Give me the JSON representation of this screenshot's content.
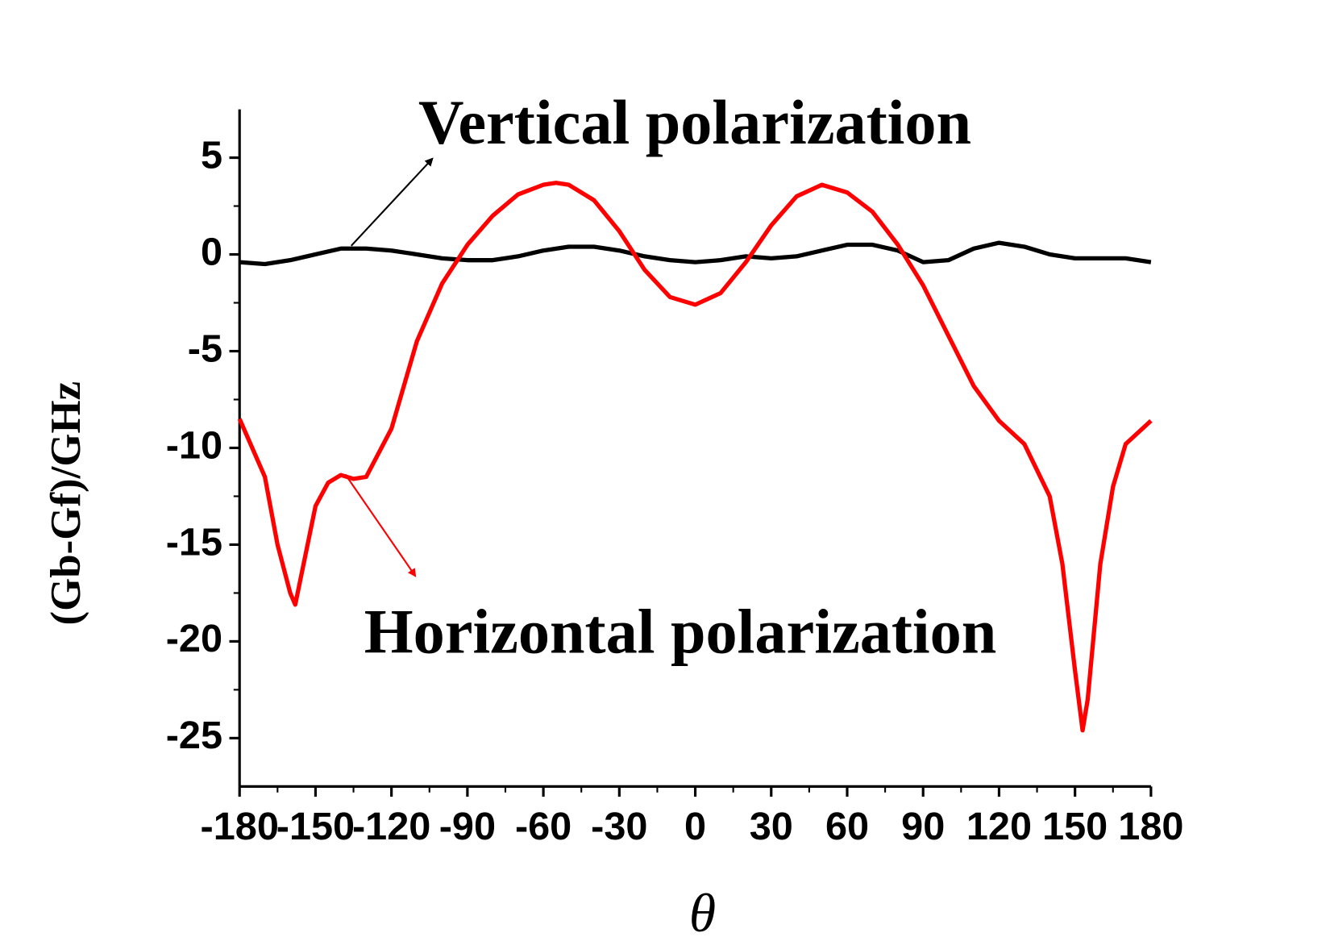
{
  "chart_data": {
    "type": "line",
    "x_label": "θ",
    "y_label": "(Gb-Gf)/GHz",
    "annotations": [
      "Vertical polarization",
      "Horizontal polarization"
    ],
    "xlim": [
      -180,
      180
    ],
    "xticks": [
      -180,
      -150,
      -120,
      -90,
      -60,
      -30,
      0,
      30,
      60,
      90,
      120,
      150,
      180
    ],
    "ylim": [
      -27.5,
      7.5
    ],
    "yticks": [
      -25,
      -20,
      -15,
      -10,
      -5,
      0,
      5
    ],
    "grid": false,
    "series": [
      {
        "name": "Vertical polarization",
        "color": "#000000",
        "x": [
          -180,
          -170,
          -160,
          -150,
          -140,
          -130,
          -120,
          -110,
          -100,
          -90,
          -80,
          -70,
          -60,
          -50,
          -40,
          -30,
          -20,
          -10,
          0,
          10,
          20,
          30,
          40,
          50,
          60,
          70,
          80,
          90,
          100,
          110,
          120,
          130,
          140,
          150,
          160,
          170,
          180
        ],
        "values": [
          -0.4,
          -0.5,
          -0.3,
          0,
          0.3,
          0.3,
          0.2,
          0,
          -0.2,
          -0.3,
          -0.3,
          -0.1,
          0.2,
          0.4,
          0.4,
          0.2,
          -0.1,
          -0.3,
          -0.4,
          -0.3,
          -0.1,
          -0.2,
          -0.1,
          0.2,
          0.5,
          0.5,
          0.2,
          -0.4,
          -0.3,
          0.3,
          0.6,
          0.4,
          0,
          -0.2,
          -0.2,
          -0.2,
          -0.4
        ]
      },
      {
        "name": "Horizontal polarization",
        "color": "#ff0000",
        "x": [
          -180,
          -170,
          -165,
          -160,
          -158,
          -150,
          -145,
          -140,
          -135,
          -130,
          -120,
          -110,
          -100,
          -90,
          -80,
          -70,
          -60,
          -55,
          -50,
          -40,
          -30,
          -20,
          -10,
          0,
          10,
          20,
          30,
          40,
          50,
          60,
          70,
          80,
          90,
          100,
          110,
          120,
          130,
          140,
          145,
          150,
          153,
          155,
          160,
          165,
          170,
          180
        ],
        "values": [
          -8.5,
          -11.5,
          -15,
          -17.5,
          -18.1,
          -13,
          -11.8,
          -11.4,
          -11.6,
          -11.5,
          -9,
          -4.5,
          -1.5,
          0.5,
          2,
          3.1,
          3.6,
          3.7,
          3.6,
          2.8,
          1.2,
          -0.8,
          -2.2,
          -2.6,
          -2.0,
          -0.4,
          1.5,
          3.0,
          3.6,
          3.2,
          2.2,
          0.5,
          -1.6,
          -4.2,
          -6.8,
          -8.6,
          -9.8,
          -12.5,
          -16,
          -21.5,
          -24.6,
          -23,
          -16,
          -12,
          -9.8,
          -8.6
        ]
      }
    ]
  }
}
